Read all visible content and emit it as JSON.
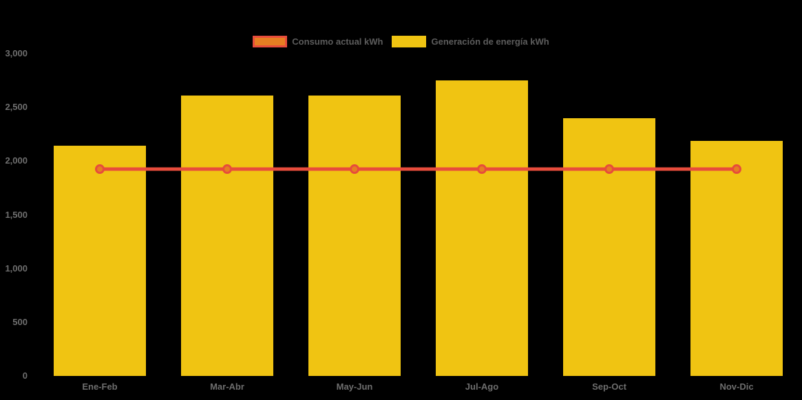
{
  "background_color": "#000000",
  "chart_data": {
    "type": "bar+line",
    "categories": [
      "Ene-Feb",
      "Mar-Abr",
      "May-Jun",
      "Jul-Ago",
      "Sep-Oct",
      "Nov-Dic"
    ],
    "series": [
      {
        "name": "Consumo actual kWh",
        "type": "line",
        "color": "#e74c3c",
        "marker_fill": "#e67e22",
        "values": [
          1925,
          1925,
          1925,
          1925,
          1925,
          1925
        ]
      },
      {
        "name": "Generación de energía kWh",
        "type": "bar",
        "color": "#f0c412",
        "values": [
          2140,
          2610,
          2610,
          2750,
          2400,
          2190
        ]
      }
    ],
    "ylim": [
      0,
      3000
    ],
    "ytick_step": 500,
    "ytick_labels": [
      "0",
      "500",
      "1,000",
      "1,500",
      "2,000",
      "2,500",
      "3,000"
    ],
    "grid": false,
    "legend_position": "top",
    "axis_text_color": "#6e6e6e",
    "legend_text_color": "#5c5c5c"
  }
}
